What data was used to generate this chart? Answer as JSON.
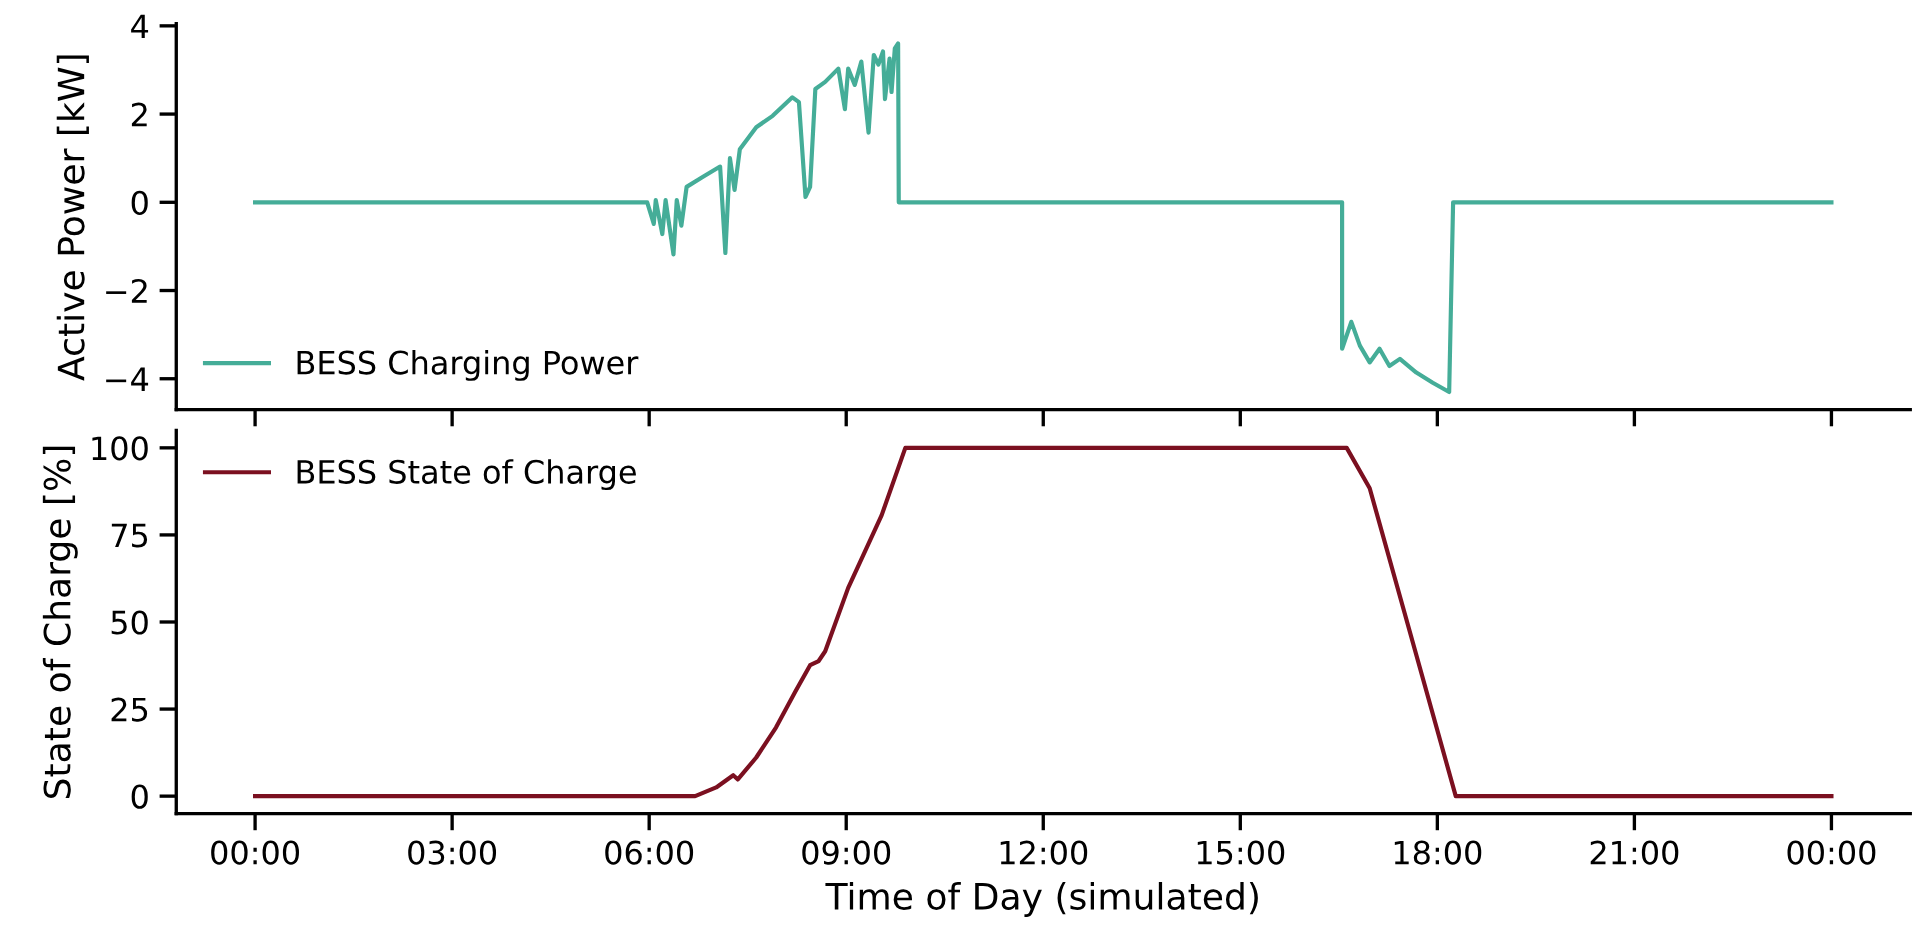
{
  "chart_data": [
    {
      "type": "line",
      "ylabel": "Active Power [kW]",
      "xlim": [
        -1.2,
        25.2
      ],
      "ylim": [
        -4.7,
        4.05
      ],
      "yticks": [
        {
          "value": -4,
          "label": "−4"
        },
        {
          "value": -2,
          "label": "−2"
        },
        0,
        2,
        4
      ],
      "xticks": [
        {
          "value": 0,
          "label": null
        },
        {
          "value": 3,
          "label": null
        },
        {
          "value": 6,
          "label": null
        },
        {
          "value": 9,
          "label": null
        },
        {
          "value": 12,
          "label": null
        },
        {
          "value": 15,
          "label": null
        },
        {
          "value": 18,
          "label": null
        },
        {
          "value": 21,
          "label": null
        },
        {
          "value": 24,
          "label": null
        }
      ],
      "tick_labels": "y",
      "legend": "bottom left",
      "grid": false,
      "series": [
        {
          "name": "BESS Charging Power",
          "color": "#45ad98",
          "x": [
            0,
            5.97,
            6.07,
            6.1,
            6.2,
            6.25,
            6.37,
            6.42,
            6.49,
            6.57,
            6.82,
            7.08,
            7.16,
            7.23,
            7.3,
            7.38,
            7.63,
            7.88,
            8.18,
            8.28,
            8.38,
            8.45,
            8.53,
            8.68,
            8.88,
            8.98,
            9.03,
            9.13,
            9.23,
            9.34,
            9.42,
            9.49,
            9.56,
            9.59,
            9.66,
            9.69,
            9.74,
            9.79,
            9.8,
            16.55,
            16.55,
            16.69,
            16.82,
            16.97,
            17.12,
            17.27,
            17.43,
            17.68,
            17.93,
            18.18,
            18.24,
            24
          ],
          "values": [
            0,
            0,
            -0.49,
            0.05,
            -0.72,
            0.05,
            -1.18,
            0.05,
            -0.53,
            0.35,
            0.58,
            0.81,
            -1.15,
            1.0,
            0.28,
            1.2,
            1.7,
            1.96,
            2.38,
            2.27,
            0.12,
            0.35,
            2.57,
            2.73,
            3.03,
            2.11,
            3.03,
            2.66,
            3.19,
            1.58,
            3.34,
            3.12,
            3.42,
            2.34,
            3.26,
            2.5,
            3.49,
            3.6,
            0,
            0,
            -3.32,
            -2.71,
            -3.25,
            -3.63,
            -3.32,
            -3.71,
            -3.55,
            -3.86,
            -4.09,
            -4.3,
            0,
            0
          ]
        }
      ]
    },
    {
      "type": "line",
      "ylabel": "State of Charge [%]",
      "xlabel": "Time of Day (simulated)",
      "xlim": [
        -1.2,
        25.2
      ],
      "ylim": [
        -5,
        105
      ],
      "yticks": [
        0,
        25,
        50,
        75,
        100
      ],
      "xticks": [
        {
          "value": 0,
          "label": "00:00"
        },
        {
          "value": 3,
          "label": "03:00"
        },
        {
          "value": 6,
          "label": "06:00"
        },
        {
          "value": 9,
          "label": "09:00"
        },
        {
          "value": 12,
          "label": "12:00"
        },
        {
          "value": 15,
          "label": "15:00"
        },
        {
          "value": 18,
          "label": "18:00"
        },
        {
          "value": 21,
          "label": "21:00"
        },
        {
          "value": 24,
          "label": "00:00"
        }
      ],
      "legend": "top left",
      "grid": false,
      "series": [
        {
          "name": "BESS State of Charge",
          "color": "#7b1020",
          "x": [
            0,
            6.7,
            7.02,
            7.28,
            7.35,
            7.63,
            7.93,
            8.23,
            8.45,
            8.58,
            8.68,
            9.03,
            9.54,
            9.9,
            16.62,
            16.97,
            17.48,
            18.28,
            24
          ],
          "values": [
            0,
            0,
            2.5,
            6,
            4.8,
            11.1,
            19.7,
            30.2,
            37.6,
            38.8,
            41.6,
            59.8,
            80.7,
            100,
            100,
            88.4,
            54,
            0,
            0
          ]
        }
      ]
    }
  ]
}
